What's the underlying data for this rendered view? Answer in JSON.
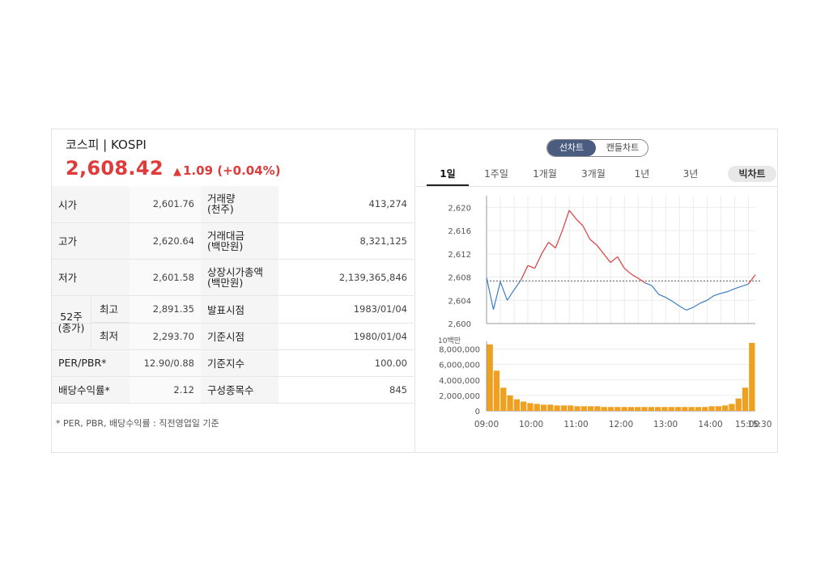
{
  "header": {
    "title": "코스피 | KOSPI",
    "price": "2,608.42",
    "change_arrow": "▲",
    "change": "1.09 (+0.04%)"
  },
  "stats": {
    "open_label": "시가",
    "open": "2,601.76",
    "volume_label_1": "거래량",
    "volume_label_2": "(천주)",
    "volume": "413,274",
    "high_label": "고가",
    "high": "2,620.64",
    "value_label_1": "거래대금",
    "value_label_2": "(백만원)",
    "value": "8,321,125",
    "low_label": "저가",
    "low": "2,601.58",
    "mcap_label_1": "상장시가총액",
    "mcap_label_2": "(백만원)",
    "mcap": "2,139,365,846",
    "w52_label_1": "52주",
    "w52_label_2": "(종가)",
    "w52_high_label": "최고",
    "w52_high": "2,891.35",
    "w52_low_label": "최저",
    "w52_low": "2,293.70",
    "announce_label": "발표시점",
    "announce": "1983/01/04",
    "base_time_label": "기준시점",
    "base_time": "1980/01/04",
    "per_label": "PER/PBR*",
    "per": "12.90/0.88",
    "base_index_label": "기준지수",
    "base_index": "100.00",
    "div_label": "배당수익률*",
    "div": "2.12",
    "constituents_label": "구성종목수",
    "constituents": "845"
  },
  "footnote": "* PER, PBR, 배당수익률 : 직전영업일 기준",
  "chart_toggle": {
    "line": "선차트",
    "candle": "캔들차트"
  },
  "periods": [
    "1일",
    "1주일",
    "1개월",
    "3개월",
    "1년",
    "3년"
  ],
  "big_chart": "빅차트",
  "colors": {
    "up": "#e03a3a",
    "down": "#3b7ec4",
    "volume": "#f0a020"
  },
  "chart_data": [
    {
      "type": "line",
      "xlabel": "",
      "ylabel": "",
      "ylim": [
        2600,
        2622
      ],
      "yticks": [
        "2,620",
        "2,616",
        "2,612",
        "2,608",
        "2,604",
        "2,600"
      ],
      "reference_value": 2607.33,
      "x": [
        "09:00",
        "09:10",
        "09:20",
        "09:30",
        "09:40",
        "09:50",
        "10:00",
        "10:10",
        "10:20",
        "10:30",
        "10:40",
        "10:50",
        "11:00",
        "11:10",
        "11:20",
        "11:30",
        "11:40",
        "11:50",
        "12:00",
        "12:10",
        "12:20",
        "12:30",
        "12:40",
        "12:50",
        "13:00",
        "13:10",
        "13:20",
        "13:30",
        "13:40",
        "13:50",
        "14:00",
        "14:10",
        "14:20",
        "14:30",
        "14:40",
        "14:50",
        "15:00",
        "15:10",
        "15:20",
        "15:30"
      ],
      "values": [
        2607.9,
        2602.4,
        2607.2,
        2604.0,
        2605.8,
        2607.5,
        2610.0,
        2609.5,
        2612.0,
        2614.0,
        2613.0,
        2616.0,
        2619.5,
        2618.0,
        2616.8,
        2614.5,
        2613.5,
        2612.0,
        2610.5,
        2611.5,
        2609.5,
        2608.5,
        2607.8,
        2607.0,
        2606.5,
        2605.0,
        2604.5,
        2603.8,
        2603.0,
        2602.3,
        2602.8,
        2603.5,
        2604.0,
        2604.8,
        2605.2,
        2605.5,
        2606.0,
        2606.4,
        2606.8,
        2608.4
      ]
    },
    {
      "type": "bar",
      "ylabel": "10백만",
      "ylim": [
        0,
        9000000
      ],
      "yticks": [
        "8,000,000",
        "6,000,000",
        "4,000,000",
        "2,000,000",
        "0"
      ],
      "x_ticks": [
        "09:00",
        "10:00",
        "11:00",
        "12:00",
        "13:00",
        "14:00",
        "15:00",
        "15:30"
      ],
      "values": [
        8600000,
        5200000,
        3000000,
        2000000,
        1500000,
        1200000,
        1000000,
        900000,
        800000,
        800000,
        700000,
        700000,
        700000,
        600000,
        600000,
        600000,
        600000,
        500000,
        500000,
        500000,
        500000,
        500000,
        500000,
        500000,
        500000,
        500000,
        500000,
        500000,
        500000,
        500000,
        500000,
        500000,
        500000,
        600000,
        600000,
        700000,
        900000,
        1600000,
        3000000,
        8800000
      ]
    }
  ]
}
